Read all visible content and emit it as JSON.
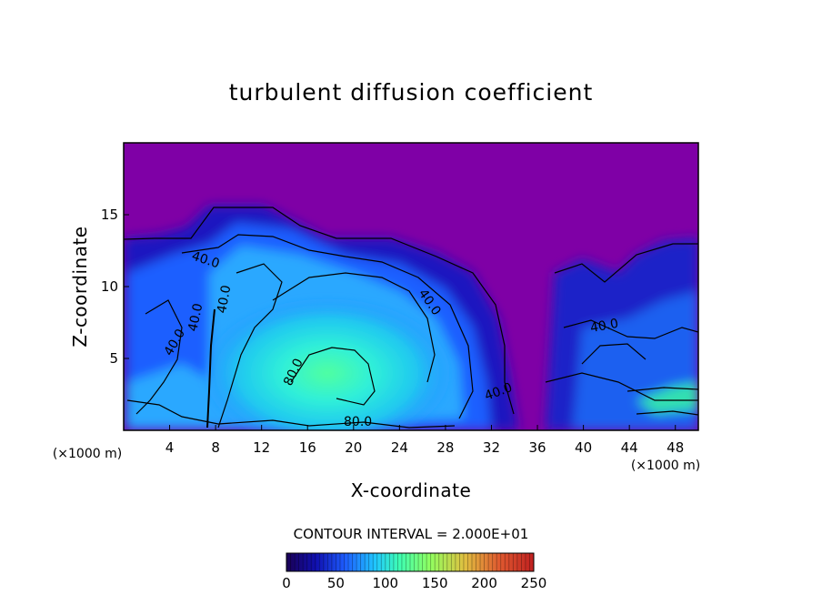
{
  "chart_data": {
    "type": "heatmap",
    "title": "turbulent diffusion coefficient",
    "xlabel": "X-coordinate",
    "ylabel": "Z-coordinate",
    "x_unit": "(×1000 m)",
    "y_unit": "(×1000 m)",
    "xlim": [
      0,
      50
    ],
    "ylim": [
      0,
      20
    ],
    "x_ticks": [
      4,
      8,
      12,
      16,
      20,
      24,
      28,
      32,
      36,
      40,
      44,
      48
    ],
    "y_ticks": [
      5,
      10,
      15
    ],
    "contour_interval_text": "CONTOUR INTERVAL = 2.000E+01",
    "contour_labels": [
      "40.0",
      "40.0",
      "40.0",
      "40.0",
      "40.0",
      "80.0",
      "80.0",
      "40.0",
      "40.0"
    ],
    "colorbar": {
      "range": [
        0,
        250
      ],
      "ticks": [
        0,
        50,
        100,
        150,
        200,
        250
      ],
      "colors": [
        "#1a0055",
        "#1010b0",
        "#1e5fff",
        "#20c8ff",
        "#40ffb0",
        "#90ff60",
        "#e0c040",
        "#e05a30",
        "#c02020"
      ]
    },
    "background_color": "#7f00a6",
    "grid": false
  }
}
